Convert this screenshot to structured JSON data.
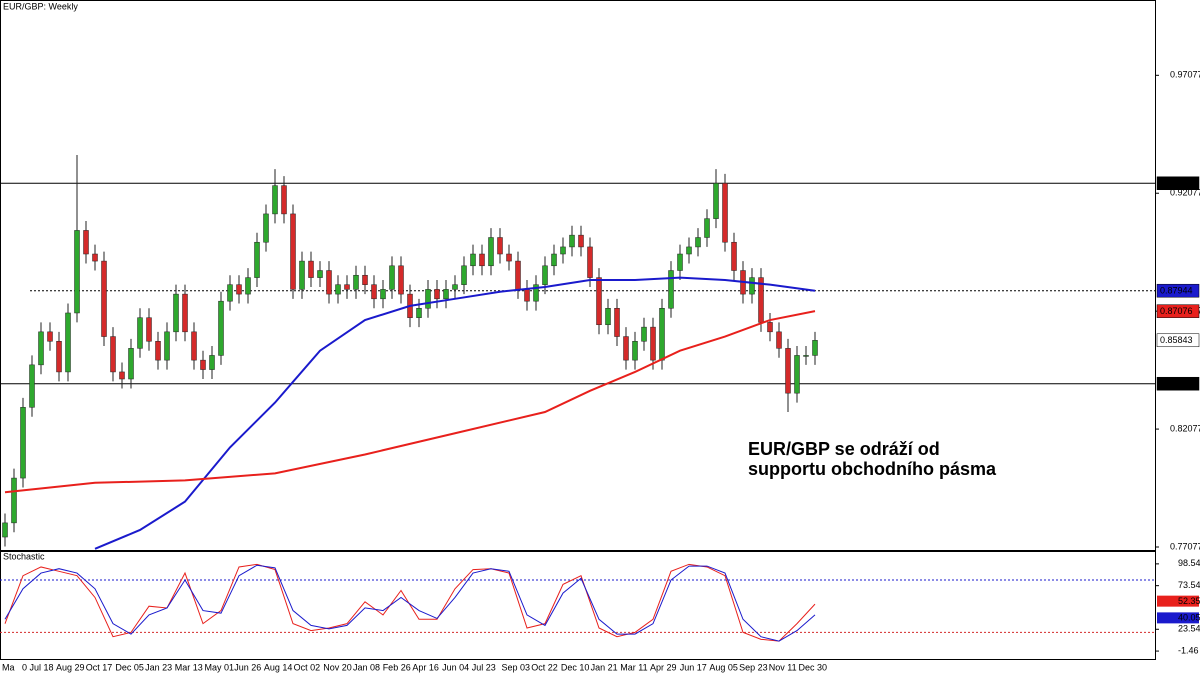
{
  "chart_data": [
    {
      "type": "candlestick",
      "title": "EUR/GBP: Weekly",
      "open": [
        0.775,
        0.781,
        0.8,
        0.83,
        0.848,
        0.862,
        0.858,
        0.845,
        0.87,
        0.905,
        0.895,
        0.892,
        0.86,
        0.845,
        0.842,
        0.855,
        0.868,
        0.858,
        0.85,
        0.862,
        0.878,
        0.862,
        0.85,
        0.846,
        0.852,
        0.875,
        0.882,
        0.878,
        0.885,
        0.9,
        0.912,
        0.924,
        0.912,
        0.88,
        0.892,
        0.885,
        0.888,
        0.878,
        0.882,
        0.88,
        0.886,
        0.882,
        0.876,
        0.88,
        0.89,
        0.878,
        0.868,
        0.872,
        0.88,
        0.876,
        0.88,
        0.882,
        0.89,
        0.895,
        0.89,
        0.902,
        0.895,
        0.892,
        0.88,
        0.875,
        0.882,
        0.89,
        0.895,
        0.898,
        0.903,
        0.898,
        0.885,
        0.865,
        0.872,
        0.86,
        0.85,
        0.858,
        0.864,
        0.85,
        0.872,
        0.888,
        0.895,
        0.898,
        0.902,
        0.91,
        0.925,
        0.9,
        0.888,
        0.878,
        0.885,
        0.866,
        0.862,
        0.855,
        0.836,
        0.852,
        0.852
      ],
      "high": [
        0.785,
        0.804,
        0.834,
        0.852,
        0.866,
        0.866,
        0.862,
        0.874,
        0.937,
        0.909,
        0.899,
        0.896,
        0.864,
        0.849,
        0.859,
        0.872,
        0.872,
        0.862,
        0.866,
        0.882,
        0.882,
        0.866,
        0.854,
        0.856,
        0.879,
        0.886,
        0.886,
        0.889,
        0.904,
        0.916,
        0.931,
        0.928,
        0.916,
        0.896,
        0.896,
        0.892,
        0.892,
        0.886,
        0.886,
        0.89,
        0.89,
        0.886,
        0.884,
        0.894,
        0.894,
        0.882,
        0.876,
        0.884,
        0.884,
        0.884,
        0.886,
        0.894,
        0.899,
        0.899,
        0.906,
        0.906,
        0.899,
        0.896,
        0.884,
        0.886,
        0.894,
        0.899,
        0.902,
        0.907,
        0.907,
        0.902,
        0.889,
        0.876,
        0.876,
        0.864,
        0.862,
        0.868,
        0.868,
        0.876,
        0.892,
        0.899,
        0.902,
        0.906,
        0.914,
        0.931,
        0.929,
        0.904,
        0.892,
        0.889,
        0.889,
        0.87,
        0.866,
        0.859,
        0.856,
        0.856,
        0.862
      ],
      "low": [
        0.771,
        0.777,
        0.796,
        0.826,
        0.844,
        0.854,
        0.841,
        0.841,
        0.866,
        0.891,
        0.888,
        0.856,
        0.841,
        0.838,
        0.838,
        0.851,
        0.854,
        0.846,
        0.846,
        0.858,
        0.858,
        0.846,
        0.842,
        0.842,
        0.848,
        0.871,
        0.874,
        0.874,
        0.881,
        0.896,
        0.908,
        0.908,
        0.876,
        0.876,
        0.881,
        0.881,
        0.874,
        0.874,
        0.876,
        0.876,
        0.878,
        0.872,
        0.872,
        0.876,
        0.874,
        0.864,
        0.864,
        0.868,
        0.872,
        0.872,
        0.876,
        0.878,
        0.886,
        0.886,
        0.886,
        0.891,
        0.888,
        0.876,
        0.871,
        0.871,
        0.878,
        0.886,
        0.891,
        0.894,
        0.894,
        0.881,
        0.861,
        0.861,
        0.856,
        0.846,
        0.846,
        0.854,
        0.846,
        0.846,
        0.868,
        0.884,
        0.891,
        0.894,
        0.898,
        0.906,
        0.896,
        0.884,
        0.874,
        0.874,
        0.862,
        0.858,
        0.851,
        0.828,
        0.832,
        0.848,
        0.848
      ],
      "close": [
        0.781,
        0.8,
        0.83,
        0.848,
        0.862,
        0.858,
        0.845,
        0.87,
        0.905,
        0.895,
        0.892,
        0.86,
        0.845,
        0.842,
        0.855,
        0.868,
        0.858,
        0.85,
        0.862,
        0.878,
        0.862,
        0.85,
        0.846,
        0.852,
        0.875,
        0.882,
        0.878,
        0.885,
        0.9,
        0.912,
        0.924,
        0.912,
        0.88,
        0.892,
        0.885,
        0.888,
        0.878,
        0.882,
        0.88,
        0.886,
        0.882,
        0.876,
        0.88,
        0.89,
        0.878,
        0.868,
        0.872,
        0.88,
        0.876,
        0.88,
        0.882,
        0.89,
        0.895,
        0.89,
        0.902,
        0.895,
        0.892,
        0.88,
        0.875,
        0.882,
        0.89,
        0.895,
        0.898,
        0.903,
        0.898,
        0.885,
        0.865,
        0.872,
        0.86,
        0.85,
        0.858,
        0.864,
        0.85,
        0.872,
        0.888,
        0.895,
        0.898,
        0.902,
        0.91,
        0.925,
        0.9,
        0.888,
        0.878,
        0.885,
        0.866,
        0.862,
        0.855,
        0.836,
        0.852,
        0.852,
        0.8584
      ],
      "up_color": "#2ea82e",
      "down_color": "#d42a2a",
      "series": [
        {
          "color": "#1a1acc",
          "x": [
            10,
            15,
            20,
            25,
            30,
            35,
            40,
            45,
            50,
            55,
            60,
            65,
            70,
            75,
            80,
            85,
            90
          ],
          "values": [
            0.77,
            0.778,
            0.79,
            0.813,
            0.832,
            0.854,
            0.867,
            0.873,
            0.876,
            0.879,
            0.881,
            0.884,
            0.884,
            0.885,
            0.884,
            0.882,
            0.8794
          ]
        },
        {
          "color": "#e8201c",
          "x": [
            0,
            10,
            20,
            30,
            40,
            50,
            60,
            65,
            70,
            75,
            80,
            85,
            90
          ],
          "values": [
            0.794,
            0.798,
            0.799,
            0.802,
            0.81,
            0.819,
            0.828,
            0.837,
            0.845,
            0.854,
            0.86,
            0.867,
            0.8708
          ]
        }
      ],
      "levels": [
        {
          "value": 0.925,
          "label": "0.92500",
          "style": "solid",
          "color": "#000000"
        },
        {
          "value": 0.84,
          "label": "0.84000",
          "style": "solid",
          "color": "#000000"
        },
        {
          "value": 0.87944,
          "label": "0.87944",
          "style": "dotted",
          "color": "#1a1acc"
        }
      ],
      "price_labels": [
        {
          "value": 0.87076,
          "label": "0.87076",
          "color": "#e8201c"
        },
        {
          "value": 0.85843,
          "label": "0.85843",
          "color": "#ffffff"
        }
      ],
      "ylim": [
        0.7695,
        1.0027
      ],
      "yticks": [
        0.97077,
        0.92077,
        0.87077,
        0.82077,
        0.77077
      ],
      "annotation": [
        "EUR/GBP se odráží od",
        "supportu obchodního pásma"
      ],
      "xtick_labels": [
        "Ma",
        "0 Jul 18",
        "Aug 29",
        "Oct 17",
        "Dec 05",
        "Jan 23",
        "Mar 13",
        "May 01",
        "Jun 26",
        "Aug 14",
        "Oct 02",
        "Nov 20",
        "Jan 08",
        "Feb 26",
        "Apr 16",
        "Jun 04",
        "Jul 23",
        "Sep 03",
        "Oct 22",
        "Dec 10",
        "Jan 21",
        "Mar 11",
        "Apr 29",
        "Jun 17",
        "Aug 05",
        "Sep 23",
        "Nov 11",
        "Dec 30"
      ]
    },
    {
      "type": "line",
      "title": "Stochastic",
      "x": [
        0,
        2,
        4,
        6,
        8,
        10,
        12,
        14,
        16,
        18,
        20,
        22,
        24,
        26,
        28,
        30,
        32,
        34,
        36,
        38,
        40,
        42,
        44,
        46,
        48,
        50,
        52,
        54,
        56,
        58,
        60,
        62,
        64,
        66,
        68,
        70,
        72,
        74,
        76,
        78,
        80,
        82,
        84,
        86,
        88,
        90
      ],
      "series": [
        {
          "color": "#e8201c",
          "values": [
            30,
            85,
            95,
            90,
            85,
            60,
            15,
            20,
            50,
            48,
            88,
            30,
            45,
            95,
            98,
            92,
            30,
            22,
            25,
            30,
            55,
            40,
            68,
            35,
            35,
            70,
            92,
            93,
            88,
            25,
            30,
            75,
            85,
            25,
            15,
            20,
            35,
            90,
            98,
            95,
            85,
            20,
            12,
            10,
            30,
            52.35
          ],
          "value_label": "52.35"
        },
        {
          "color": "#1a1acc",
          "values": [
            35,
            70,
            88,
            93,
            88,
            70,
            30,
            18,
            40,
            48,
            80,
            45,
            42,
            85,
            97,
            94,
            45,
            28,
            24,
            28,
            48,
            45,
            60,
            45,
            36,
            60,
            88,
            93,
            90,
            40,
            28,
            65,
            82,
            35,
            18,
            18,
            30,
            80,
            96,
            96,
            88,
            35,
            15,
            10,
            22,
            40.05
          ],
          "value_label": "40.05"
        }
      ],
      "levels": [
        80,
        20
      ],
      "ylim": [
        -11.7,
        113.3
      ],
      "yticks": [
        98.54,
        73.54,
        23.54,
        -1.46
      ]
    }
  ]
}
